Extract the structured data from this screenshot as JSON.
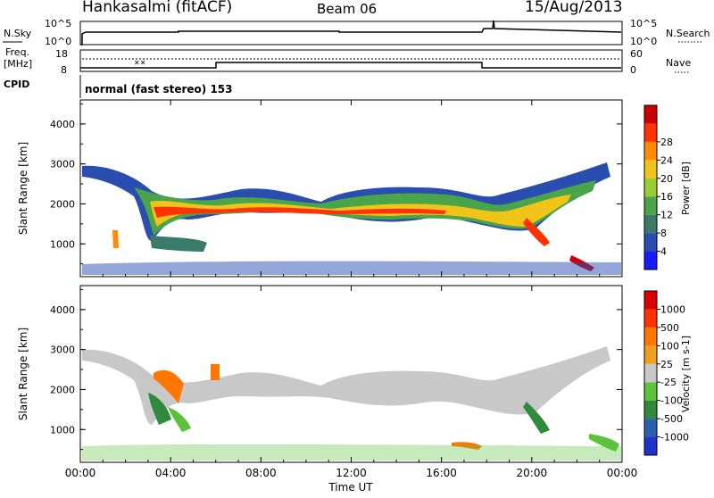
{
  "header": {
    "station": "Hankasalmi (fitACF)",
    "beam": "Beam 06",
    "date": "15/Aug/2013"
  },
  "status_panels": {
    "nsky": {
      "label": "N.Sky",
      "tick_top": "10^5",
      "tick_bottom": "10^0",
      "right_label": "N.Search",
      "right_tick_top": "10^5",
      "right_tick_bottom": "10^0"
    },
    "freq": {
      "label_line1": "Freq.",
      "label_line2": "[MHz]",
      "tick_top": "18",
      "tick_bottom": "8",
      "right_label": "Nave",
      "right_tick_top": "60",
      "right_tick_bottom": "0"
    },
    "cpid": {
      "label": "CPID",
      "value": "normal (fast stereo) 153"
    }
  },
  "chart_data": [
    {
      "type": "heatmap",
      "name": "power",
      "ylabel": "Slant Range [km]",
      "yticks": [
        1000,
        2000,
        3000,
        4000
      ],
      "ylim": [
        180,
        4600
      ],
      "xlim_hours": [
        0,
        24
      ],
      "colorbar": {
        "label": "Power [dB]",
        "ticks": [
          "4",
          "8",
          "12",
          "16",
          "20",
          "24",
          "28"
        ],
        "colors": [
          "#1a1aff",
          "#2a4db0",
          "#3a7a6a",
          "#4aa54a",
          "#9acd32",
          "#f0c419",
          "#ff8c00",
          "#ff3300",
          "#cc0000"
        ]
      }
    },
    {
      "type": "heatmap",
      "name": "velocity",
      "ylabel": "Slant Range [km]",
      "yticks": [
        1000,
        2000,
        3000,
        4000
      ],
      "ylim": [
        180,
        4600
      ],
      "xlim_hours": [
        0,
        24
      ],
      "colorbar": {
        "label": "Velocity [m s-1]",
        "ticks": [
          "1000",
          "500",
          "100",
          "25",
          "-25",
          "-100",
          "-500",
          "-1000"
        ],
        "colors": [
          "#2233cc",
          "#2a5fb0",
          "#2f8a3c",
          "#5cc23c",
          "#c8c8c8",
          "#f0a020",
          "#ff7700",
          "#ff3300",
          "#dd0000"
        ]
      }
    }
  ],
  "xaxis": {
    "title": "Time UT",
    "ticks": [
      "00:00",
      "04:00",
      "08:00",
      "12:00",
      "16:00",
      "20:00",
      "00:00"
    ]
  }
}
